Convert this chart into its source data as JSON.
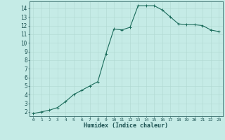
{
  "x": [
    0,
    1,
    2,
    3,
    4,
    5,
    6,
    7,
    8,
    9,
    10,
    11,
    12,
    13,
    14,
    15,
    16,
    17,
    18,
    19,
    20,
    21,
    22,
    23
  ],
  "y": [
    1.8,
    2.0,
    2.2,
    2.5,
    3.2,
    4.0,
    4.5,
    5.0,
    5.5,
    8.7,
    11.6,
    11.5,
    11.8,
    14.3,
    14.3,
    14.3,
    13.8,
    13.0,
    12.2,
    12.1,
    12.1,
    12.0,
    11.5,
    11.3
  ],
  "line_color": "#1a6b5a",
  "marker_color": "#1a6b5a",
  "bg_color": "#c5ebe6",
  "grid_color": "#b0d8d2",
  "tick_color": "#1a5050",
  "xlabel": "Humidex (Indice chaleur)",
  "xlim": [
    -0.5,
    23.5
  ],
  "ylim": [
    1.5,
    14.8
  ],
  "yticks": [
    2,
    3,
    4,
    5,
    6,
    7,
    8,
    9,
    10,
    11,
    12,
    13,
    14
  ],
  "xticks": [
    0,
    1,
    2,
    3,
    4,
    5,
    6,
    7,
    8,
    9,
    10,
    11,
    12,
    13,
    14,
    15,
    16,
    17,
    18,
    19,
    20,
    21,
    22,
    23
  ],
  "tick_fontsize_x": 4.5,
  "tick_fontsize_y": 5.5,
  "xlabel_fontsize": 6.0,
  "linewidth": 0.8,
  "markersize": 3.0,
  "markeredgewidth": 0.7
}
